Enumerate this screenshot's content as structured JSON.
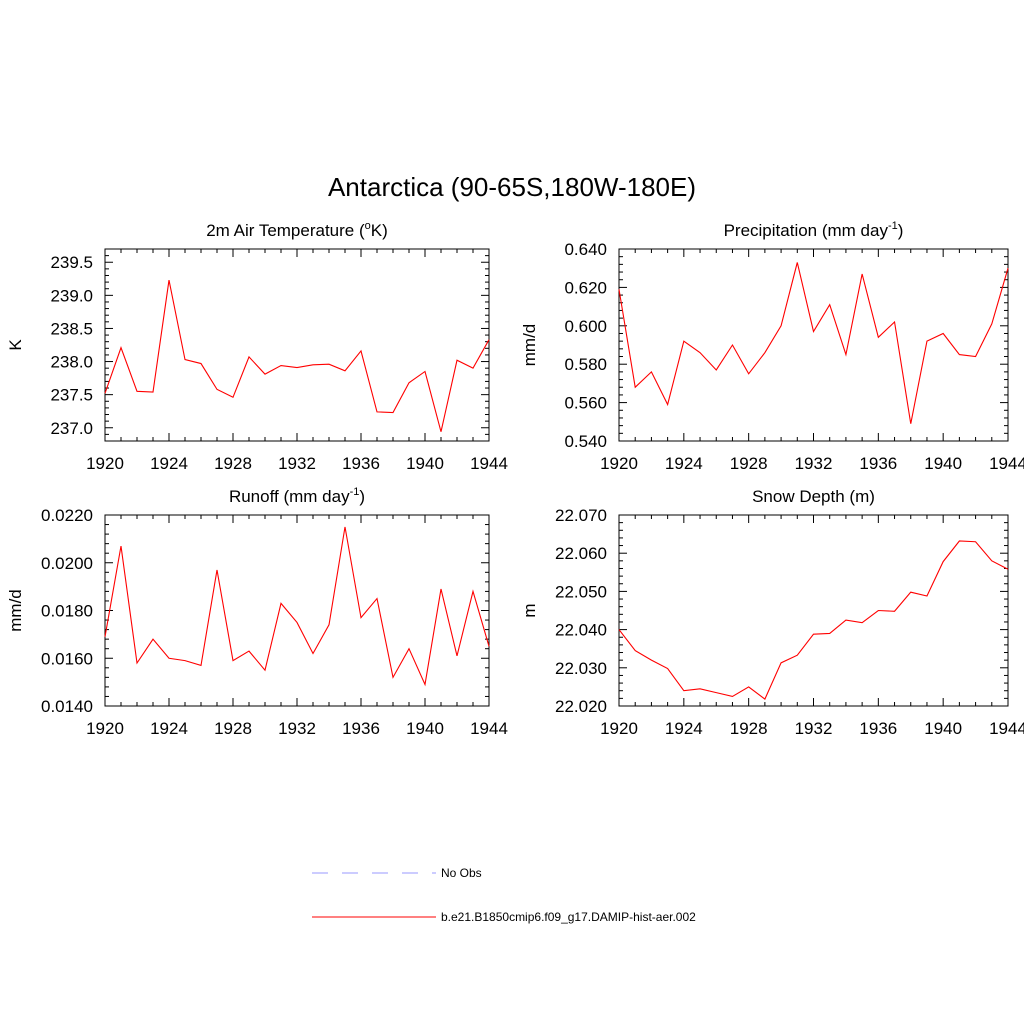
{
  "main_title": "Antarctica (90-65S,180W-180E)",
  "chart_data": [
    {
      "type": "line",
      "title": "2m Air Temperature",
      "title_unit": "K",
      "ylabel": "K",
      "x": [
        1920,
        1921,
        1922,
        1923,
        1924,
        1925,
        1926,
        1927,
        1928,
        1929,
        1930,
        1931,
        1932,
        1933,
        1934,
        1935,
        1936,
        1937,
        1938,
        1939,
        1940,
        1941,
        1942,
        1943,
        1944
      ],
      "xlim": [
        1920,
        1944
      ],
      "xticks": [
        1920,
        1924,
        1928,
        1932,
        1936,
        1940,
        1944
      ],
      "ylim": [
        236.8,
        239.7
      ],
      "yticks": [
        "237.0",
        "237.5",
        "238.0",
        "238.5",
        "239.0",
        "239.5"
      ],
      "series": [
        {
          "values": [
            237.52,
            238.21,
            237.55,
            237.54,
            239.23,
            238.03,
            237.97,
            237.58,
            237.46,
            238.07,
            237.81,
            237.94,
            237.91,
            237.95,
            237.96,
            237.86,
            238.16,
            237.24,
            237.23,
            237.68,
            237.85,
            236.94,
            238.02,
            237.9,
            238.33
          ],
          "color": "#ff0000"
        }
      ]
    },
    {
      "type": "line",
      "title": "Precipitation (mm day",
      "title_sup": "-1",
      "title_end": ")",
      "ylabel": "mm/d",
      "x": [
        1920,
        1921,
        1922,
        1923,
        1924,
        1925,
        1926,
        1927,
        1928,
        1929,
        1930,
        1931,
        1932,
        1933,
        1934,
        1935,
        1936,
        1937,
        1938,
        1939,
        1940,
        1941,
        1942,
        1943,
        1944
      ],
      "xlim": [
        1920,
        1944
      ],
      "xticks": [
        1920,
        1924,
        1928,
        1932,
        1936,
        1940,
        1944
      ],
      "ylim": [
        0.54,
        0.64
      ],
      "yticks": [
        "0.540",
        "0.560",
        "0.580",
        "0.600",
        "0.620",
        "0.640"
      ],
      "series": [
        {
          "values": [
            0.619,
            0.568,
            0.576,
            0.559,
            0.592,
            0.586,
            0.577,
            0.59,
            0.575,
            0.586,
            0.6,
            0.633,
            0.597,
            0.611,
            0.585,
            0.627,
            0.594,
            0.602,
            0.549,
            0.592,
            0.596,
            0.585,
            0.584,
            0.601,
            0.63
          ],
          "color": "#ff0000"
        }
      ]
    },
    {
      "type": "line",
      "title": "Runoff (mm day",
      "title_sup": "-1",
      "title_end": ")",
      "ylabel": "mm/d",
      "x": [
        1920,
        1921,
        1922,
        1923,
        1924,
        1925,
        1926,
        1927,
        1928,
        1929,
        1930,
        1931,
        1932,
        1933,
        1934,
        1935,
        1936,
        1937,
        1938,
        1939,
        1940,
        1941,
        1942,
        1943,
        1944
      ],
      "xlim": [
        1920,
        1944
      ],
      "xticks": [
        1920,
        1924,
        1928,
        1932,
        1936,
        1940,
        1944
      ],
      "ylim": [
        0.014,
        0.022
      ],
      "yticks": [
        "0.0140",
        "0.0160",
        "0.0180",
        "0.0200",
        "0.0220"
      ],
      "series": [
        {
          "values": [
            0.0169,
            0.0207,
            0.0158,
            0.0168,
            0.016,
            0.0159,
            0.0157,
            0.0197,
            0.0159,
            0.0163,
            0.0155,
            0.0183,
            0.0175,
            0.0162,
            0.0174,
            0.0215,
            0.0177,
            0.0185,
            0.0152,
            0.0164,
            0.0149,
            0.0189,
            0.0161,
            0.0188,
            0.0165
          ],
          "color": "#ff0000"
        }
      ]
    },
    {
      "type": "line",
      "title": "Snow Depth (m)",
      "ylabel": "m",
      "x": [
        1920,
        1921,
        1922,
        1923,
        1924,
        1925,
        1926,
        1927,
        1928,
        1929,
        1930,
        1931,
        1932,
        1933,
        1934,
        1935,
        1936,
        1937,
        1938,
        1939,
        1940,
        1941,
        1942,
        1943,
        1944
      ],
      "xlim": [
        1920,
        1944
      ],
      "xticks": [
        1920,
        1924,
        1928,
        1932,
        1936,
        1940,
        1944
      ],
      "ylim": [
        22.02,
        22.07
      ],
      "yticks": [
        "22.020",
        "22.030",
        "22.040",
        "22.050",
        "22.060",
        "22.070"
      ],
      "series": [
        {
          "values": [
            22.04,
            22.0345,
            22.032,
            22.0298,
            22.024,
            22.0245,
            22.0235,
            22.0225,
            22.025,
            22.0218,
            22.0313,
            22.0333,
            22.0388,
            22.039,
            22.0425,
            22.0418,
            22.045,
            22.0448,
            22.0498,
            22.0488,
            22.0578,
            22.0632,
            22.063,
            22.058,
            22.0558
          ],
          "color": "#ff0000"
        }
      ]
    }
  ],
  "legend": [
    {
      "label": "No Obs",
      "color": "#9999ff",
      "dash": true
    },
    {
      "label": "b.e21.B1850cmip6.f09_g17.DAMIP-hist-aer.002",
      "color": "#ff0000",
      "dash": false
    }
  ]
}
